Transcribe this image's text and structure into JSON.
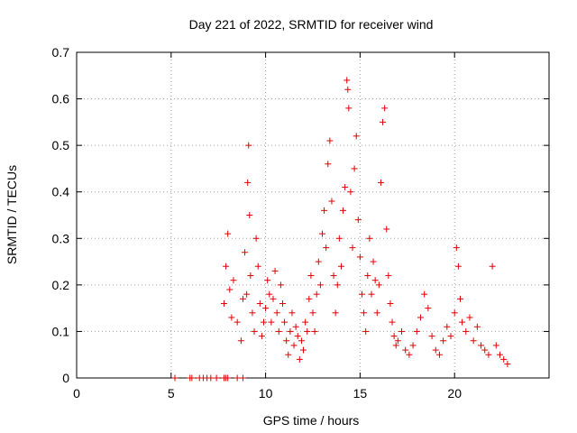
{
  "chart_data": {
    "type": "scatter",
    "title": "Day 221 of 2022, SRMTID for receiver wind",
    "xlabel": "GPS time / hours",
    "ylabel": "SRMTID / TECUs",
    "xlim": [
      0,
      25
    ],
    "ylim": [
      0,
      0.7
    ],
    "x_ticks": [
      0,
      5,
      10,
      15,
      20
    ],
    "y_ticks": [
      0,
      0.1,
      0.2,
      0.3,
      0.4,
      0.5,
      0.6,
      0.7
    ],
    "grid": true,
    "marker": "+",
    "color": "#e00000",
    "series": [
      {
        "name": "wind",
        "x": [
          5.2,
          6.0,
          6.1,
          6.5,
          6.7,
          6.9,
          7.1,
          7.4,
          7.8,
          7.9,
          8.0,
          8.5,
          8.8,
          7.8,
          7.9,
          8.0,
          8.1,
          8.2,
          8.3,
          8.5,
          8.7,
          8.8,
          8.9,
          9.0,
          9.05,
          9.1,
          9.15,
          9.2,
          9.3,
          9.4,
          9.5,
          9.6,
          9.7,
          9.8,
          9.9,
          10.0,
          10.1,
          10.2,
          10.3,
          10.4,
          10.5,
          10.6,
          10.7,
          10.8,
          10.9,
          11.0,
          11.1,
          11.2,
          11.3,
          11.4,
          11.5,
          11.6,
          11.7,
          11.8,
          11.9,
          12.0,
          12.1,
          12.2,
          12.3,
          12.4,
          12.5,
          12.6,
          12.7,
          12.8,
          12.9,
          13.0,
          13.1,
          13.2,
          13.3,
          13.4,
          13.5,
          13.6,
          13.7,
          13.8,
          13.9,
          14.0,
          14.1,
          14.2,
          14.3,
          14.35,
          14.4,
          14.5,
          14.6,
          14.7,
          14.8,
          14.9,
          15.0,
          15.1,
          15.2,
          15.3,
          15.4,
          15.5,
          15.6,
          15.7,
          15.8,
          15.9,
          16.0,
          16.1,
          16.2,
          16.3,
          16.4,
          16.5,
          16.6,
          16.7,
          16.8,
          16.9,
          17.0,
          17.2,
          17.4,
          17.6,
          17.8,
          18.0,
          18.2,
          18.4,
          18.6,
          18.8,
          19.0,
          19.2,
          19.4,
          19.6,
          19.8,
          20.0,
          20.1,
          20.2,
          20.3,
          20.4,
          20.6,
          20.8,
          21.0,
          21.2,
          21.4,
          21.6,
          21.8,
          22.0,
          22.2,
          22.4,
          22.6,
          22.8
        ],
        "y": [
          0,
          0,
          0,
          0,
          0,
          0,
          0,
          0,
          0,
          0,
          0,
          0,
          0,
          0.16,
          0.24,
          0.31,
          0.19,
          0.13,
          0.21,
          0.12,
          0.08,
          0.17,
          0.27,
          0.18,
          0.42,
          0.5,
          0.35,
          0.22,
          0.14,
          0.1,
          0.3,
          0.24,
          0.16,
          0.09,
          0.12,
          0.15,
          0.21,
          0.18,
          0.12,
          0.17,
          0.23,
          0.14,
          0.1,
          0.2,
          0.16,
          0.12,
          0.08,
          0.05,
          0.1,
          0.14,
          0.07,
          0.11,
          0.09,
          0.04,
          0.08,
          0.06,
          0.12,
          0.1,
          0.17,
          0.22,
          0.14,
          0.1,
          0.18,
          0.25,
          0.2,
          0.31,
          0.36,
          0.28,
          0.46,
          0.51,
          0.38,
          0.22,
          0.14,
          0.2,
          0.3,
          0.24,
          0.36,
          0.41,
          0.64,
          0.62,
          0.58,
          0.4,
          0.28,
          0.45,
          0.52,
          0.34,
          0.26,
          0.18,
          0.14,
          0.1,
          0.22,
          0.3,
          0.18,
          0.25,
          0.21,
          0.14,
          0.2,
          0.42,
          0.55,
          0.58,
          0.32,
          0.22,
          0.16,
          0.12,
          0.09,
          0.07,
          0.08,
          0.1,
          0.06,
          0.05,
          0.07,
          0.1,
          0.13,
          0.18,
          0.15,
          0.09,
          0.06,
          0.05,
          0.08,
          0.11,
          0.09,
          0.14,
          0.28,
          0.24,
          0.17,
          0.12,
          0.1,
          0.13,
          0.08,
          0.11,
          0.07,
          0.06,
          0.05,
          0.24,
          0.07,
          0.05,
          0.04,
          0.03
        ]
      }
    ]
  }
}
